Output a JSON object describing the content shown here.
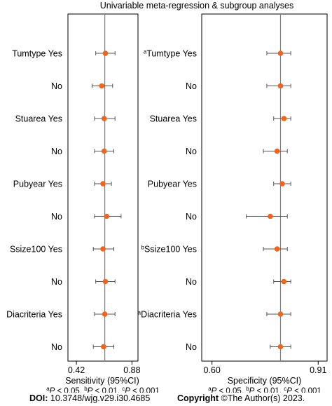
{
  "chart_data": {
    "type": "forest",
    "title": "Univariable meta-regression & subgroup analyses",
    "marker_color": "#f0641e",
    "categories": [
      "Tumtype Yes",
      "No",
      "Stuarea Yes",
      "No",
      "Pubyear Yes",
      "No",
      "Ssize100 Yes",
      "No",
      "Diacriteria Yes",
      "No"
    ],
    "panels": [
      {
        "name": "sensitivity",
        "xlabel": "Sensitivity (95%CI)",
        "xlim": [
          0.35,
          0.93
        ],
        "ticks": [
          0.42,
          0.88
        ],
        "tick_labels": [
          "0.42",
          "0.88"
        ],
        "reference": 0.655,
        "label_marks": [
          "",
          "",
          "",
          "",
          "",
          "",
          "",
          "",
          "",
          ""
        ],
        "estimates": [
          0.66,
          0.63,
          0.65,
          0.65,
          0.64,
          0.67,
          0.64,
          0.66,
          0.655,
          0.645
        ],
        "lower": [
          0.58,
          0.55,
          0.57,
          0.57,
          0.57,
          0.57,
          0.56,
          0.58,
          0.57,
          0.56
        ],
        "upper": [
          0.74,
          0.72,
          0.74,
          0.73,
          0.71,
          0.79,
          0.73,
          0.74,
          0.74,
          0.73
        ]
      },
      {
        "name": "specificity",
        "xlabel": "Specificity (95%CI)",
        "xlim": [
          0.57,
          0.936
        ],
        "ticks": [
          0.6,
          0.91
        ],
        "tick_labels": [
          "0.60",
          "0.91"
        ],
        "reference": 0.8,
        "label_marks": [
          "a",
          "",
          "",
          "",
          "",
          "",
          "b",
          "",
          "a",
          ""
        ],
        "estimates": [
          0.8,
          0.8,
          0.81,
          0.79,
          0.805,
          0.77,
          0.79,
          0.81,
          0.8,
          0.8
        ],
        "lower": [
          0.76,
          0.76,
          0.78,
          0.75,
          0.78,
          0.7,
          0.75,
          0.78,
          0.76,
          0.77
        ],
        "upper": [
          0.83,
          0.83,
          0.83,
          0.82,
          0.83,
          0.82,
          0.82,
          0.83,
          0.83,
          0.83
        ]
      }
    ],
    "footnote_sensitivity": {
      "a": "P < 0.05, ",
      "b": "P < 0.01, ",
      "c": "P < 0.001"
    },
    "footnote_specificity": {
      "a": "P < 0.05, ",
      "b": "P < 0.01, ",
      "c": "P < 0.001"
    }
  },
  "footer": {
    "doi_label": "DOI:",
    "doi_value": " 10.3748/wjg.v29.i30.4685",
    "copyright_label": "Copyright",
    "copyright_value": " ©The Author(s) 2023."
  }
}
